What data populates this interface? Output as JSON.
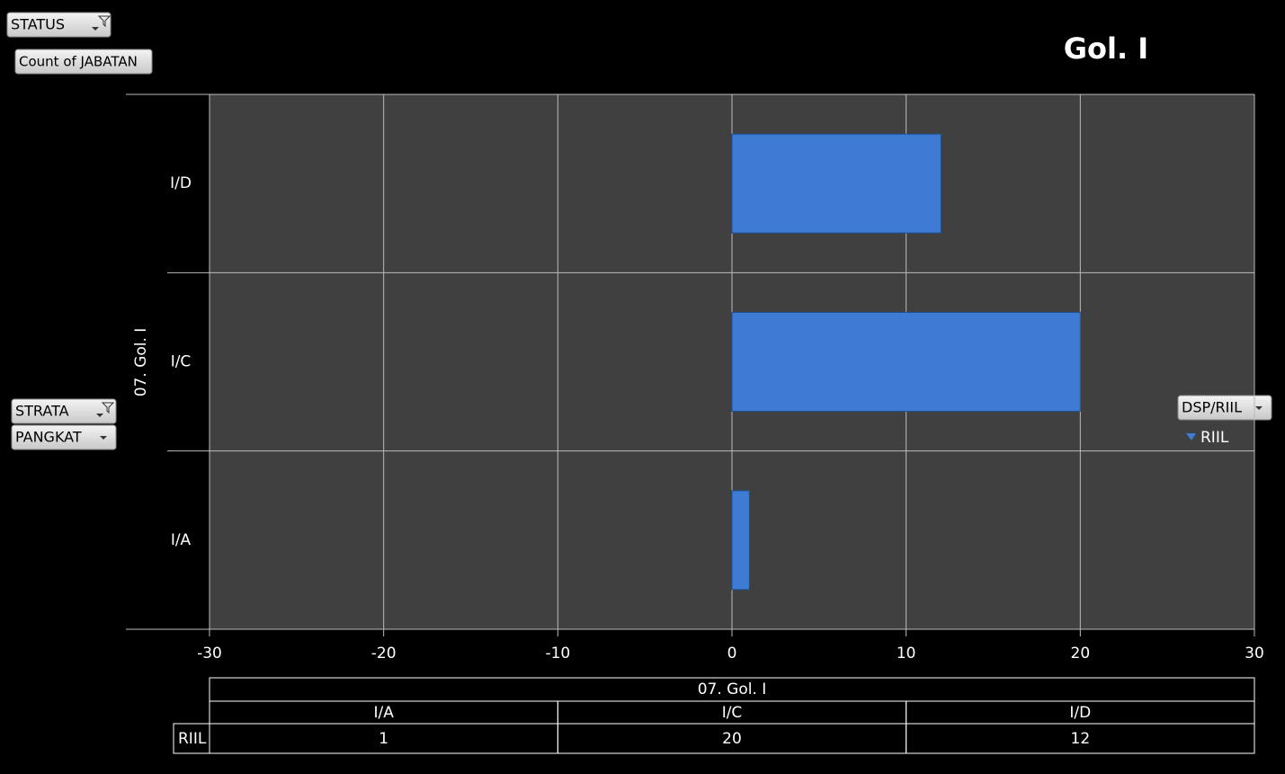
{
  "chart_data": {
    "type": "hbar",
    "title": "Gol. I",
    "group_label": "07. Gol. I",
    "categories": [
      "I/A",
      "I/C",
      "I/D"
    ],
    "series": [
      {
        "name": "RIIL",
        "color": "#3d7bd4",
        "values": [
          1,
          20,
          12
        ]
      }
    ],
    "xlim": [
      -30,
      30
    ],
    "xticks": [
      -30,
      -20,
      -10,
      0,
      10,
      20,
      30
    ],
    "grid": true,
    "legend": "right",
    "data_table": true
  },
  "pivot": {
    "report_filter": "STATUS",
    "values_field": "Count of JABATAN",
    "axis_fields": [
      "STRATA",
      "PANGKAT"
    ],
    "legend_field": "DSP/RIIL"
  }
}
